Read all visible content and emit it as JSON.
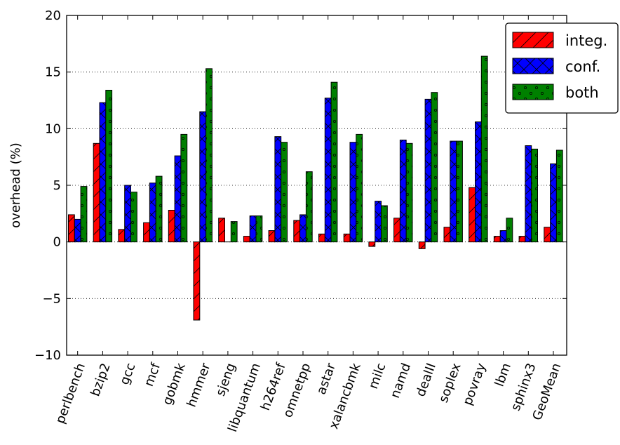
{
  "chart_data": {
    "type": "bar",
    "ylabel": "overhead (%)",
    "ylim": [
      -10,
      20
    ],
    "yticks": [
      -10,
      -5,
      0,
      5,
      10,
      15,
      20
    ],
    "ytick_labels": [
      "−10",
      "−5",
      "0",
      "5",
      "10",
      "15",
      "20"
    ],
    "grid": "horizontal dotted",
    "legend_position": "top-right",
    "categories": [
      "perlbench",
      "bzip2",
      "gcc",
      "mcf",
      "gobmk",
      "hmmer",
      "sjeng",
      "libquantum",
      "h264ref",
      "omnetpp",
      "astar",
      "xalancbmk",
      "milc",
      "namd",
      "dealII",
      "soplex",
      "povray",
      "lbm",
      "sphinx3",
      "GeoMean"
    ],
    "series": [
      {
        "name": "integ.",
        "color": "#ff0000",
        "hatch": "diagonal",
        "values": [
          2.4,
          8.7,
          1.1,
          1.7,
          2.8,
          -6.9,
          2.1,
          0.5,
          1.0,
          1.9,
          0.7,
          0.7,
          -0.4,
          2.1,
          -0.6,
          1.3,
          4.8,
          0.5,
          0.5,
          1.3
        ]
      },
      {
        "name": "conf.",
        "color": "#0000ff",
        "hatch": "cross",
        "values": [
          2.0,
          12.3,
          5.0,
          5.2,
          7.6,
          11.5,
          0.0,
          2.3,
          9.3,
          2.4,
          12.7,
          8.8,
          3.6,
          9.0,
          12.6,
          8.9,
          10.6,
          1.0,
          8.5,
          6.9
        ]
      },
      {
        "name": "both",
        "color": "#008000",
        "hatch": "dots",
        "values": [
          4.9,
          13.4,
          4.4,
          5.8,
          9.5,
          15.3,
          1.8,
          2.3,
          8.8,
          6.2,
          14.1,
          9.5,
          3.2,
          8.7,
          13.2,
          8.9,
          16.4,
          2.1,
          8.2,
          8.1
        ]
      }
    ]
  }
}
